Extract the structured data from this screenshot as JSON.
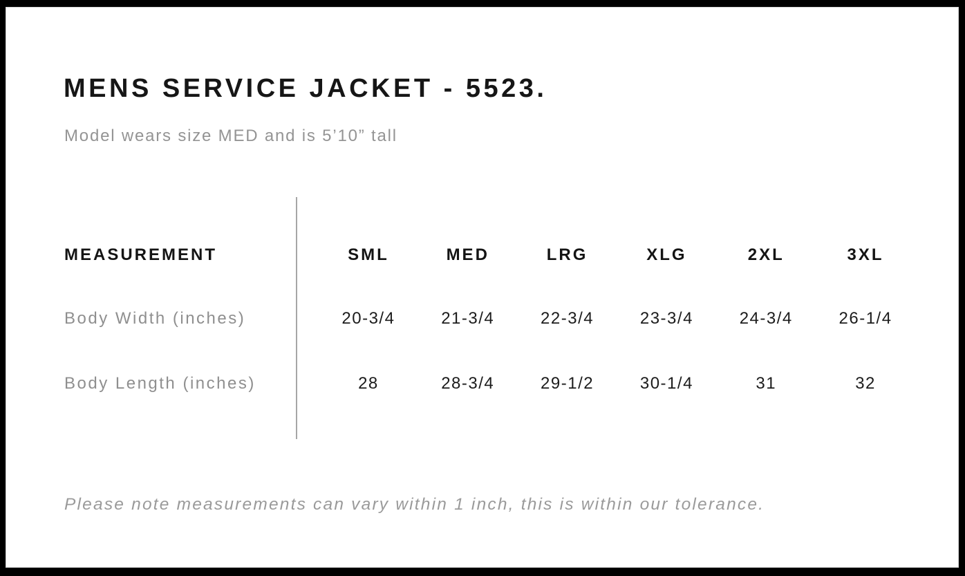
{
  "page": {
    "title": "MENS SERVICE JACKET - 5523.",
    "subtitle": "Model wears size MED and is 5’10” tall",
    "footnote": "Please note measurements can vary within 1 inch, this is within our tolerance."
  },
  "size_chart": {
    "measurement_header": "MEASUREMENT",
    "size_headers": [
      "SML",
      "MED",
      "LRG",
      "XLG",
      "2XL",
      "3XL"
    ],
    "rows": [
      {
        "label": "Body Width (inches)",
        "values": [
          "20-3/4",
          "21-3/4",
          "22-3/4",
          "23-3/4",
          "24-3/4",
          "26-1/4"
        ]
      },
      {
        "label": "Body Length (inches)",
        "values": [
          "28",
          "28-3/4",
          "29-1/2",
          "30-1/4",
          "31",
          "32"
        ]
      }
    ]
  },
  "chart_data": {
    "type": "table",
    "title": "MENS SERVICE JACKET - 5523.",
    "subtitle": "Model wears size MED and is 5’10” tall",
    "columns": [
      "MEASUREMENT",
      "SML",
      "MED",
      "LRG",
      "XLG",
      "2XL",
      "3XL"
    ],
    "rows": [
      [
        "Body Width (inches)",
        "20-3/4",
        "21-3/4",
        "22-3/4",
        "23-3/4",
        "24-3/4",
        "26-1/4"
      ],
      [
        "Body Length (inches)",
        "28",
        "28-3/4",
        "29-1/2",
        "30-1/4",
        "31",
        "32"
      ]
    ],
    "note": "Please note measurements can vary within 1 inch, this is within our tolerance.",
    "layout": {
      "divider_between_label_and_sizes": true,
      "grid": "off"
    }
  },
  "colors": {
    "frame": "#000000",
    "text_primary": "#161616",
    "text_muted": "#949494",
    "divider": "#a6a6a6",
    "background": "#ffffff"
  }
}
